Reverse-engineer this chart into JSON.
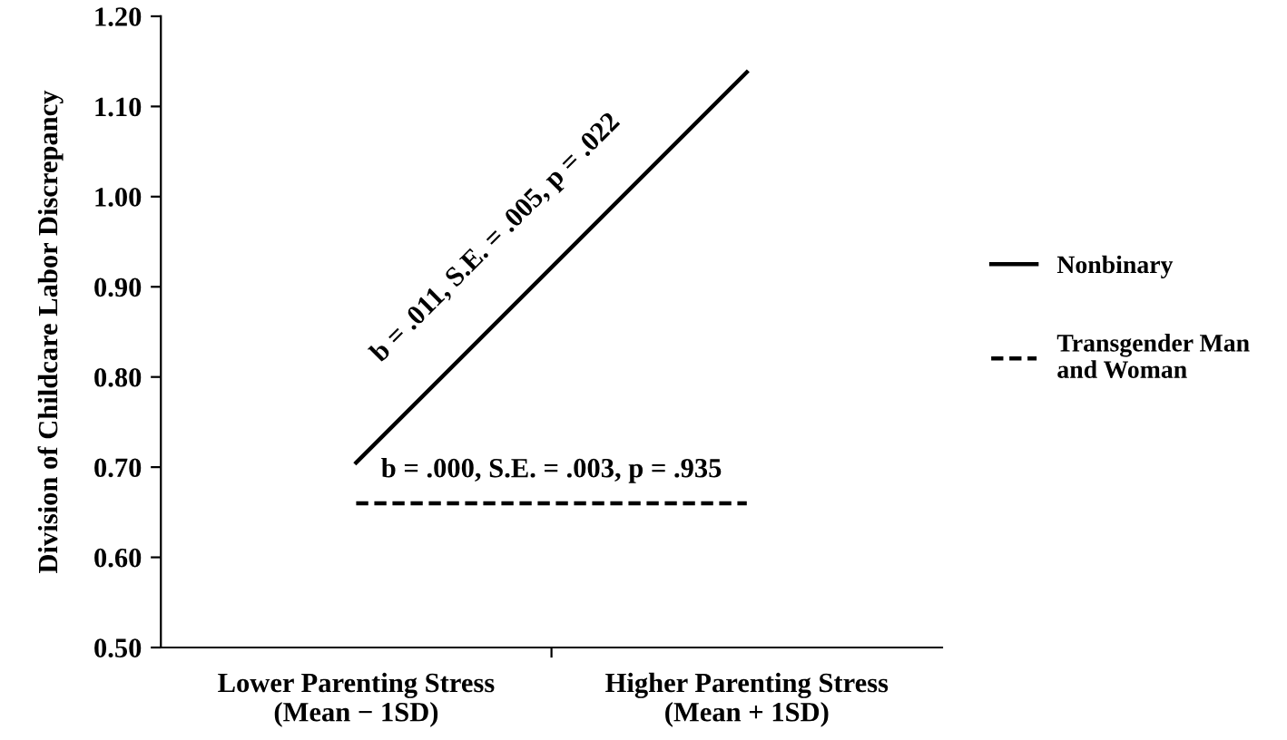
{
  "chart_data": {
    "type": "line",
    "ylabel": "Division of Childcare Labor Discrepancy",
    "categories": [
      "Lower Parenting Stress\n(Mean − 1SD)",
      "Higher Parenting Stress\n(Mean + 1SD)"
    ],
    "series": [
      {
        "name": "Nonbinary",
        "color": "#000000",
        "line_style": "solid",
        "values": [
          0.705,
          1.138
        ]
      },
      {
        "name": "Transgender Man\nand Woman",
        "color": "#000000",
        "line_style": "dashed",
        "values": [
          0.66,
          0.66
        ]
      }
    ],
    "annotations": [
      "b = .011, S.E. = .005, p = .022",
      "b = .000, S.E. = .003, p = .935"
    ],
    "ylim": [
      0.5,
      1.2
    ],
    "yticks": [
      {
        "value": 0.5,
        "label": "0.50"
      },
      {
        "value": 0.6,
        "label": "0.60"
      },
      {
        "value": 0.7,
        "label": "0.70"
      },
      {
        "value": 0.8,
        "label": "0.80"
      },
      {
        "value": 0.9,
        "label": "0.90"
      },
      {
        "value": 1.0,
        "label": "1.00"
      },
      {
        "value": 1.1,
        "label": "1.10"
      },
      {
        "value": 1.2,
        "label": "1.20"
      }
    ],
    "legend": "right",
    "marker": "none",
    "grid": false
  }
}
